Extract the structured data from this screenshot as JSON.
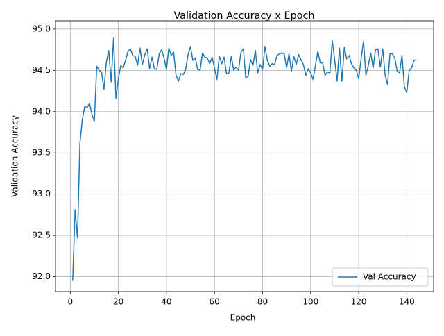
{
  "chart_data": {
    "type": "line",
    "title": "Validation Accuracy x Epoch",
    "x_label": "Epoch",
    "y_label": "Validation Accuracy",
    "x": [
      1,
      2,
      3,
      4,
      5,
      6,
      7,
      8,
      9,
      10,
      11,
      12,
      13,
      14,
      15,
      16,
      17,
      18,
      19,
      20,
      21,
      22,
      23,
      24,
      25,
      26,
      27,
      28,
      29,
      30,
      31,
      32,
      33,
      34,
      35,
      36,
      37,
      38,
      39,
      40,
      41,
      42,
      43,
      44,
      45,
      46,
      47,
      48,
      49,
      50,
      51,
      52,
      53,
      54,
      55,
      56,
      57,
      58,
      59,
      60,
      61,
      62,
      63,
      64,
      65,
      66,
      67,
      68,
      69,
      70,
      71,
      72,
      73,
      74,
      75,
      76,
      77,
      78,
      79,
      80,
      81,
      82,
      83,
      84,
      85,
      86,
      87,
      88,
      89,
      90,
      91,
      92,
      93,
      94,
      95,
      96,
      97,
      98,
      99,
      100,
      101,
      102,
      103,
      104,
      105,
      106,
      107,
      108,
      109,
      110,
      111,
      112,
      113,
      114,
      115,
      116,
      117,
      118,
      119,
      120,
      121,
      122,
      123,
      124,
      125,
      126,
      127,
      128,
      129,
      130,
      131,
      132,
      133,
      134,
      135,
      136,
      137,
      138,
      139,
      140,
      141,
      142,
      143,
      144
    ],
    "series": [
      {
        "name": "Val Accuracy",
        "color": "#1f77b4",
        "values": [
          91.95,
          92.81,
          92.47,
          93.62,
          93.9,
          94.06,
          94.05,
          94.1,
          93.97,
          93.88,
          94.55,
          94.5,
          94.48,
          94.27,
          94.6,
          94.74,
          94.36,
          94.89,
          94.16,
          94.4,
          94.56,
          94.53,
          94.62,
          94.73,
          94.76,
          94.68,
          94.67,
          94.56,
          94.77,
          94.57,
          94.69,
          94.76,
          94.52,
          94.66,
          94.52,
          94.51,
          94.7,
          94.75,
          94.65,
          94.51,
          94.77,
          94.68,
          94.72,
          94.44,
          94.37,
          94.46,
          94.45,
          94.51,
          94.69,
          94.79,
          94.62,
          94.65,
          94.51,
          94.5,
          94.71,
          94.66,
          94.65,
          94.58,
          94.66,
          94.53,
          94.39,
          94.67,
          94.58,
          94.66,
          94.46,
          94.47,
          94.67,
          94.5,
          94.54,
          94.5,
          94.72,
          94.76,
          94.41,
          94.43,
          94.63,
          94.56,
          94.74,
          94.47,
          94.57,
          94.51,
          94.79,
          94.62,
          94.55,
          94.58,
          94.57,
          94.68,
          94.7,
          94.71,
          94.7,
          94.53,
          94.7,
          94.49,
          94.67,
          94.57,
          94.69,
          94.63,
          94.57,
          94.44,
          94.52,
          94.47,
          94.39,
          94.56,
          94.73,
          94.59,
          94.59,
          94.44,
          94.48,
          94.47,
          94.86,
          94.63,
          94.37,
          94.77,
          94.37,
          94.78,
          94.64,
          94.68,
          94.58,
          94.53,
          94.5,
          94.4,
          94.64,
          94.85,
          94.44,
          94.56,
          94.71,
          94.53,
          94.75,
          94.76,
          94.54,
          94.76,
          94.44,
          94.33,
          94.7,
          94.7,
          94.65,
          94.49,
          94.47,
          94.68,
          94.3,
          94.23,
          94.5,
          94.53,
          94.62,
          94.63
        ]
      }
    ],
    "xlim": [
      -6.15,
      151.15
    ],
    "ylim": [
      91.82,
      95.1
    ],
    "xticks": [
      0,
      20,
      40,
      60,
      80,
      100,
      120,
      140
    ],
    "yticks": [
      {
        "value": 92,
        "label": "92.0"
      },
      92.5,
      {
        "value": 93,
        "label": "93.0"
      },
      93.5,
      {
        "value": 94,
        "label": "94.0"
      },
      94.5,
      {
        "value": 95,
        "label": "95.0"
      }
    ],
    "grid": true,
    "legend": "lower right"
  }
}
